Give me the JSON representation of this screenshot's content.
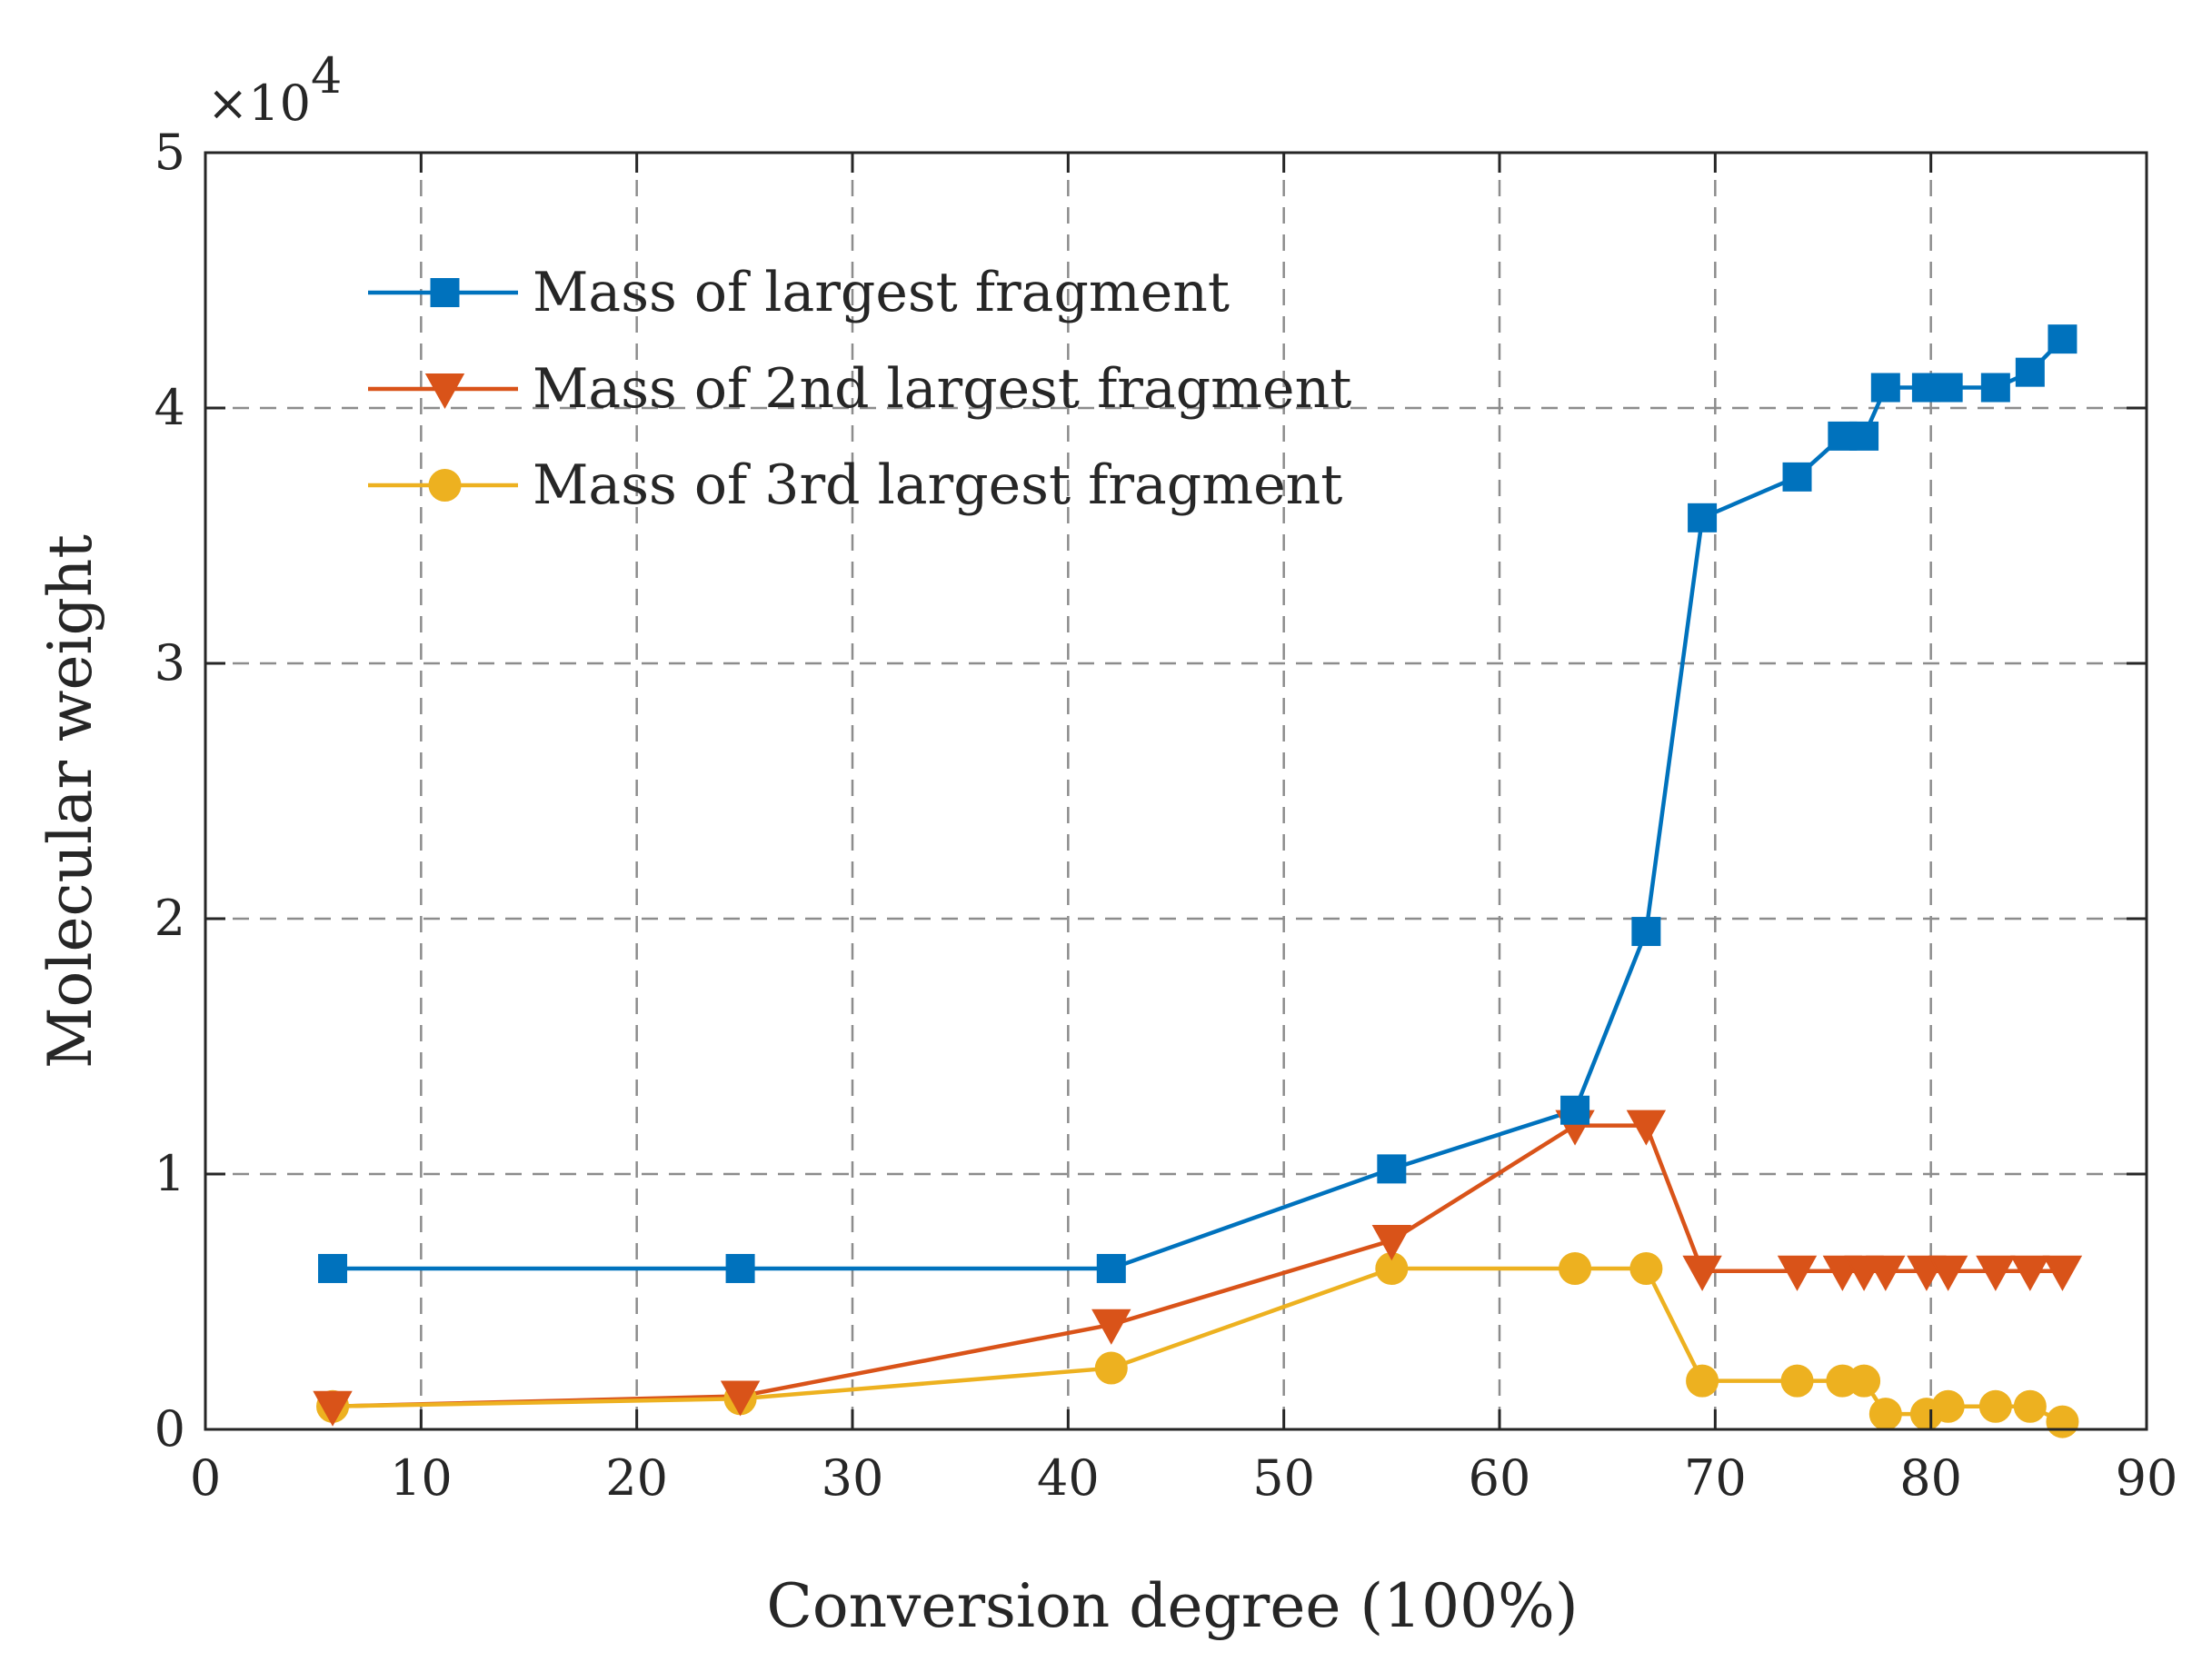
{
  "chart_data": {
    "type": "line",
    "title": "",
    "xlabel": "Conversion degree (100%)",
    "ylabel": "Molecular weight",
    "y_multiplier_label": "×10",
    "y_multiplier_exponent": "4",
    "xlim": [
      0,
      90
    ],
    "ylim": [
      0,
      5
    ],
    "xticks": [
      "0",
      "10",
      "20",
      "30",
      "40",
      "50",
      "60",
      "70",
      "80",
      "90"
    ],
    "yticks": [
      "0",
      "1",
      "2",
      "3",
      "4",
      "5"
    ],
    "xtick_values": [
      0,
      10,
      20,
      30,
      40,
      50,
      60,
      70,
      80,
      90
    ],
    "ytick_values": [
      0,
      1,
      2,
      3,
      4,
      5
    ],
    "grid": true,
    "legend_position": "top-left",
    "series": [
      {
        "name": "Mass of largest fragment",
        "color": "#0072BD",
        "marker": "square",
        "x": [
          5.9,
          24.8,
          42.0,
          55.0,
          63.5,
          66.8,
          69.4,
          73.8,
          75.9,
          76.9,
          77.9,
          79.8,
          80.8,
          83.0,
          84.6,
          86.1
        ],
        "y": [
          0.63,
          0.63,
          0.63,
          1.02,
          1.25,
          1.95,
          3.57,
          3.73,
          3.89,
          3.89,
          4.08,
          4.08,
          4.08,
          4.08,
          4.14,
          4.27
        ]
      },
      {
        "name": "Mass of 2nd largest fragment",
        "color": "#D95319",
        "marker": "triangle-down",
        "x": [
          5.9,
          24.8,
          42.0,
          55.0,
          63.5,
          66.8,
          69.4,
          73.8,
          75.9,
          76.9,
          77.9,
          79.8,
          80.8,
          83.0,
          84.6,
          86.1
        ],
        "y": [
          0.09,
          0.13,
          0.41,
          0.74,
          1.19,
          1.19,
          0.62,
          0.62,
          0.62,
          0.62,
          0.62,
          0.62,
          0.62,
          0.62,
          0.62,
          0.62
        ]
      },
      {
        "name": "Mass of 3rd largest fragment",
        "color": "#EDB120",
        "marker": "circle",
        "x": [
          5.9,
          24.8,
          42.0,
          55.0,
          63.5,
          66.8,
          69.4,
          73.8,
          75.9,
          76.9,
          77.9,
          79.8,
          80.8,
          83.0,
          84.6,
          86.1
        ],
        "y": [
          0.09,
          0.12,
          0.24,
          0.63,
          0.63,
          0.63,
          0.19,
          0.19,
          0.19,
          0.19,
          0.06,
          0.06,
          0.09,
          0.09,
          0.09,
          0.03
        ]
      }
    ]
  }
}
